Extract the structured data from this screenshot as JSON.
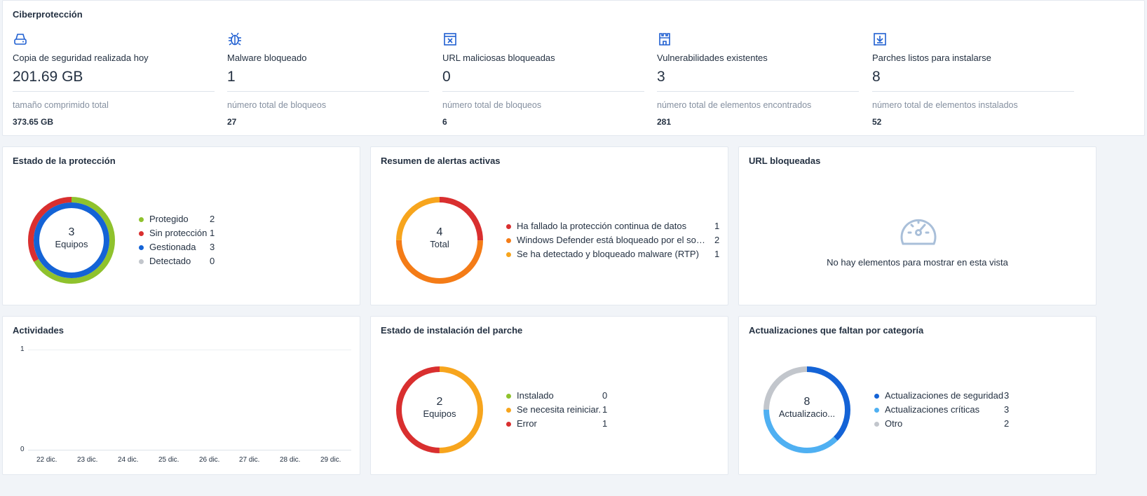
{
  "cyber": {
    "title": "Ciberprotección",
    "stats": [
      {
        "icon": "hard-drive-icon",
        "label": "Copia de seguridad realizada hoy",
        "value": "201.69 GB",
        "sublabel": "tamaño comprimido total",
        "subvalue": "373.65 GB"
      },
      {
        "icon": "bug-icon",
        "label": "Malware bloqueado",
        "value": "1",
        "sublabel": "número total de bloqueos",
        "subvalue": "27"
      },
      {
        "icon": "blocked-window-icon",
        "label": "URL maliciosas bloqueadas",
        "value": "0",
        "sublabel": "número total de bloqueos",
        "subvalue": "6"
      },
      {
        "icon": "castle-icon",
        "label": "Vulnerabilidades existentes",
        "value": "3",
        "sublabel": "número total de elementos encontrados",
        "subvalue": "281"
      },
      {
        "icon": "download-box-icon",
        "label": "Parches listos para instalarse",
        "value": "8",
        "sublabel": "número total de elementos instalados",
        "subvalue": "52"
      }
    ]
  },
  "protection": {
    "title": "Estado de la protección",
    "center_value": "3",
    "center_label": "Equipos",
    "items": [
      {
        "label": "Protegido",
        "count": "2",
        "color": "#8fc22d"
      },
      {
        "label": "Sin protección",
        "count": "1",
        "color": "#d92f2f"
      },
      {
        "label": "Gestionada",
        "count": "3",
        "color": "#1463d6"
      },
      {
        "label": "Detectado",
        "count": "0",
        "color": "#c2c6cc"
      }
    ]
  },
  "alerts": {
    "title": "Resumen de alertas activas",
    "center_value": "4",
    "center_label": "Total",
    "items": [
      {
        "label": "Ha fallado la protección continua de datos",
        "count": "1",
        "color": "#d92f2f"
      },
      {
        "label": "Windows Defender está bloqueado por el soft...",
        "count": "2",
        "color": "#f47c17"
      },
      {
        "label": "Se ha detectado y bloqueado malware (RTP)",
        "count": "1",
        "color": "#f7a51d"
      }
    ]
  },
  "urls": {
    "title": "URL bloqueadas",
    "empty_icon": "gauge-icon",
    "empty_text": "No hay elementos para mostrar en esta vista"
  },
  "activities": {
    "title": "Actividades",
    "y_ticks": [
      "1",
      "0"
    ],
    "x_ticks": [
      "22 dic.",
      "23 dic.",
      "24 dic.",
      "25 dic.",
      "26 dic.",
      "27 dic.",
      "28 dic.",
      "29 dic."
    ]
  },
  "patch": {
    "title": "Estado de instalación del parche",
    "center_value": "2",
    "center_label": "Equipos",
    "items": [
      {
        "label": "Instalado",
        "count": "0",
        "color": "#8fc22d"
      },
      {
        "label": "Se necesita reiniciar.",
        "count": "1",
        "color": "#f7a51d"
      },
      {
        "label": "Error",
        "count": "1",
        "color": "#d92f2f"
      }
    ]
  },
  "updates": {
    "title": "Actualizaciones que faltan por categoría",
    "center_value": "8",
    "center_label": "Actualizacio...",
    "items": [
      {
        "label": "Actualizaciones de seguridad",
        "count": "3",
        "color": "#1463d6"
      },
      {
        "label": "Actualizaciones críticas",
        "count": "3",
        "color": "#4fb0f2"
      },
      {
        "label": "Otro",
        "count": "2",
        "color": "#c2c6cc"
      }
    ]
  }
}
